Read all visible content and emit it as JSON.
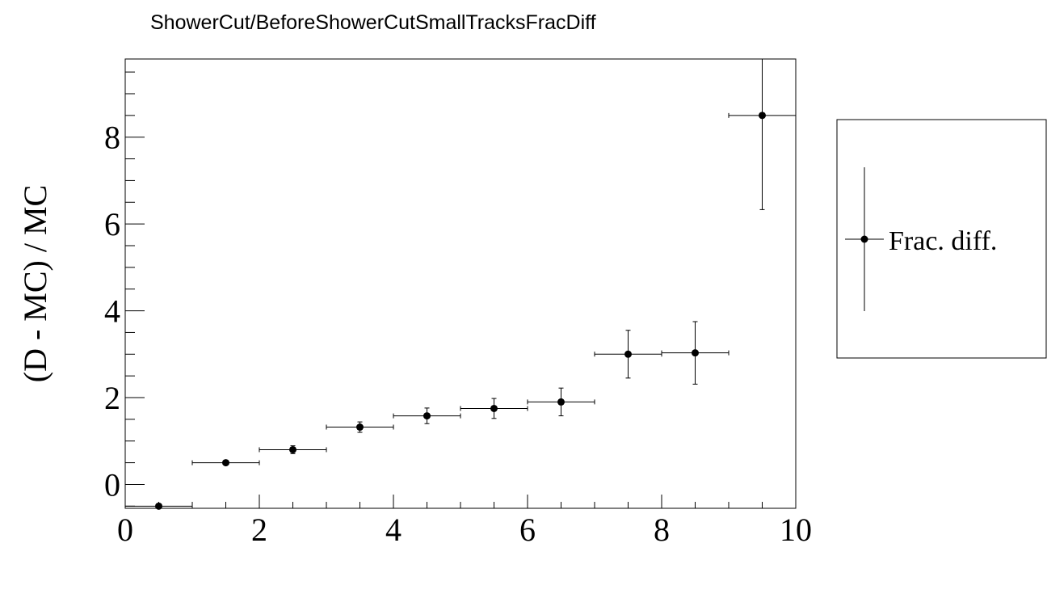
{
  "chart_data": {
    "type": "scatter",
    "title": "ShowerCut/BeforeShowerCutSmallTracksFracDiff",
    "xlabel": "",
    "ylabel": "(D - MC) / MC",
    "xlim": [
      0,
      10
    ],
    "ylim": [
      -0.55,
      9.8
    ],
    "x_ticks": [
      0,
      2,
      4,
      6,
      8,
      10
    ],
    "y_ticks": [
      0,
      2,
      4,
      6,
      8
    ],
    "grid": false,
    "legend_position": "right",
    "series": [
      {
        "name": "Frac. diff.",
        "color": "#000000",
        "points": [
          {
            "x": 0.5,
            "y": -0.5,
            "xerr": 0.5,
            "yerr": 0.03
          },
          {
            "x": 1.5,
            "y": 0.5,
            "xerr": 0.5,
            "yerr": 0.05
          },
          {
            "x": 2.5,
            "y": 0.8,
            "xerr": 0.5,
            "yerr": 0.09
          },
          {
            "x": 3.5,
            "y": 1.32,
            "xerr": 0.5,
            "yerr": 0.12
          },
          {
            "x": 4.5,
            "y": 1.58,
            "xerr": 0.5,
            "yerr": 0.18
          },
          {
            "x": 5.5,
            "y": 1.75,
            "xerr": 0.5,
            "yerr": 0.23
          },
          {
            "x": 6.5,
            "y": 1.9,
            "xerr": 0.5,
            "yerr": 0.32
          },
          {
            "x": 7.5,
            "y": 3.0,
            "xerr": 0.5,
            "yerr": 0.55
          },
          {
            "x": 8.5,
            "y": 3.03,
            "xerr": 0.5,
            "yerr": 0.72
          },
          {
            "x": 9.5,
            "y": 8.5,
            "xerr": 0.5,
            "yerr": 2.17
          }
        ]
      }
    ]
  }
}
